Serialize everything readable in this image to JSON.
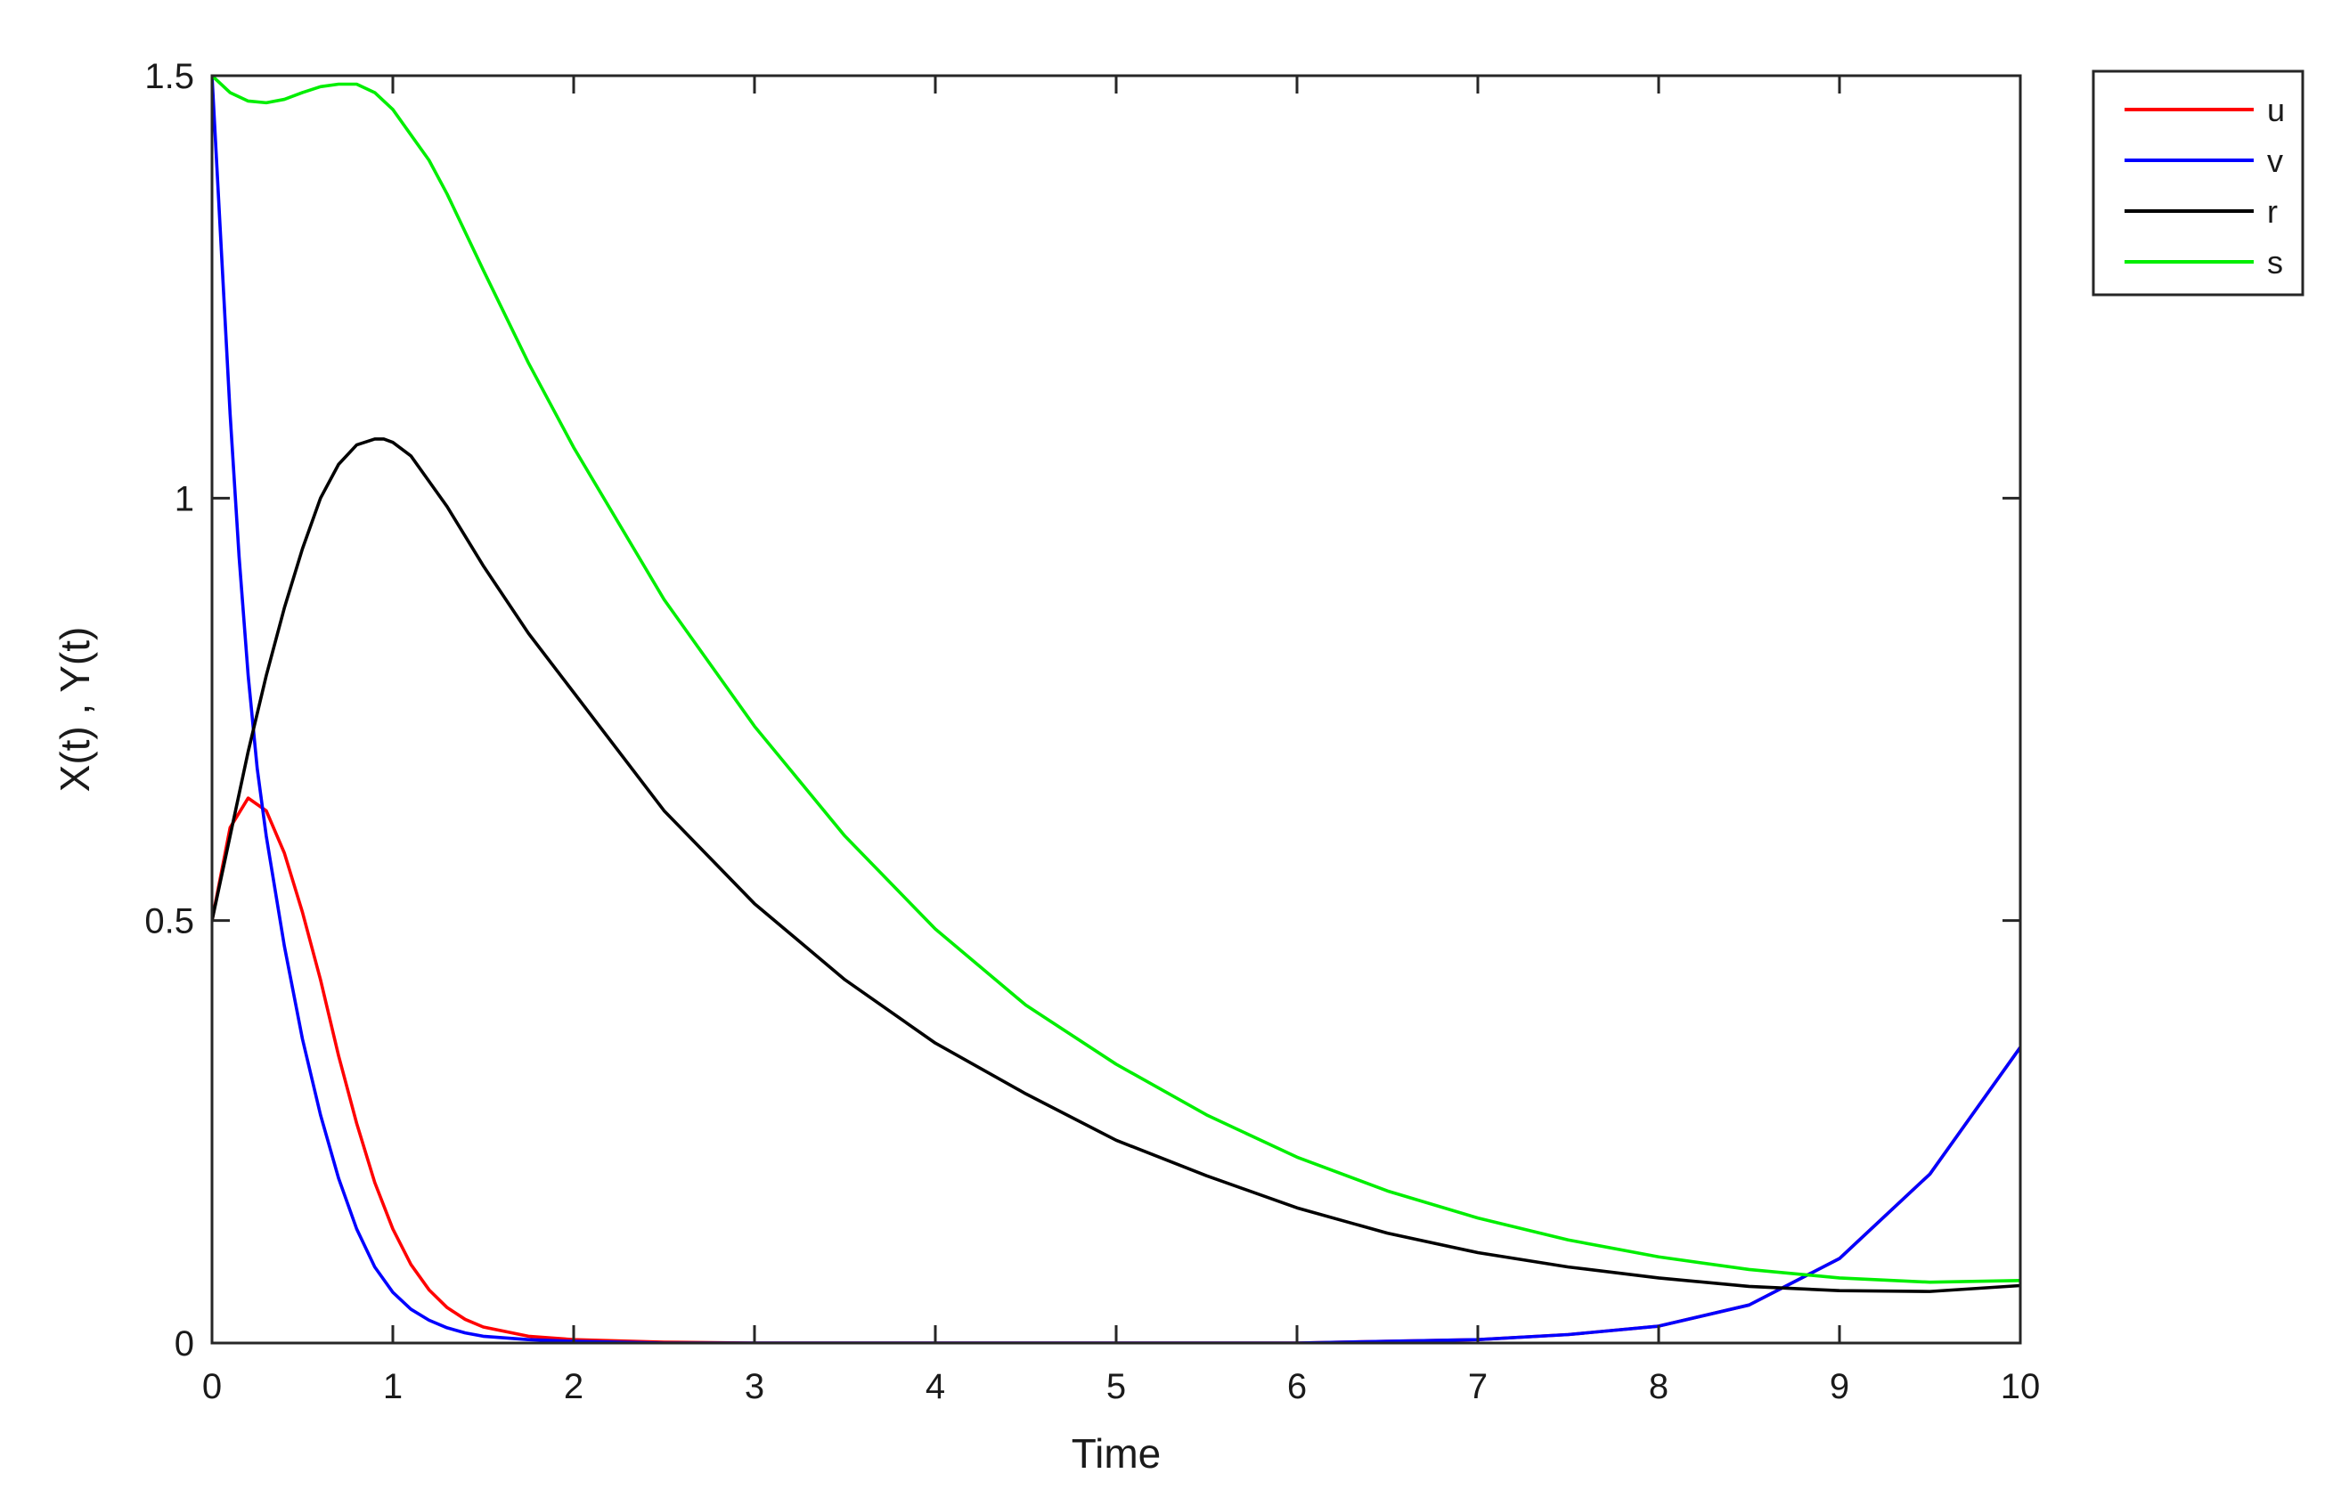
{
  "chart_data": {
    "type": "line",
    "title": "",
    "xlabel": "Time",
    "ylabel": "X(t) , Y(t)",
    "xlim": [
      0,
      10
    ],
    "ylim": [
      0,
      1.5
    ],
    "xticks": [
      0,
      1,
      2,
      3,
      4,
      5,
      6,
      7,
      8,
      9,
      10
    ],
    "xtick_labels": [
      "0",
      "1",
      "2",
      "3",
      "4",
      "5",
      "6",
      "7",
      "8",
      "9",
      "10"
    ],
    "yticks": [
      0,
      0.5,
      1,
      1.5
    ],
    "ytick_labels": [
      "0",
      "0.5",
      "1",
      "1.5"
    ],
    "grid": false,
    "legend_position": "outside-top-right",
    "series": [
      {
        "name": "u",
        "color": "#ff0000",
        "x": [
          0,
          0.1,
          0.2,
          0.3,
          0.4,
          0.5,
          0.6,
          0.7,
          0.8,
          0.9,
          1.0,
          1.1,
          1.2,
          1.3,
          1.4,
          1.5,
          1.75,
          2.0,
          2.5,
          3,
          4,
          5,
          6,
          7,
          7.5,
          8,
          8.5,
          9,
          9.5,
          10
        ],
        "y": [
          0.5,
          0.61,
          0.645,
          0.63,
          0.58,
          0.51,
          0.43,
          0.34,
          0.26,
          0.19,
          0.135,
          0.093,
          0.063,
          0.042,
          0.028,
          0.019,
          0.008,
          0.004,
          0.001,
          0.0,
          0.0,
          0.0,
          0.0,
          0.004,
          0.01,
          0.02,
          0.045,
          0.1,
          0.2,
          0.35
        ]
      },
      {
        "name": "v",
        "color": "#0000ff",
        "x": [
          0,
          0.05,
          0.1,
          0.15,
          0.2,
          0.25,
          0.3,
          0.4,
          0.5,
          0.6,
          0.7,
          0.8,
          0.9,
          1.0,
          1.1,
          1.2,
          1.3,
          1.4,
          1.5,
          1.75,
          2.0,
          2.5,
          3,
          4,
          5,
          6,
          7,
          7.5,
          8,
          8.5,
          9,
          9.5,
          10
        ],
        "y": [
          1.5,
          1.3,
          1.1,
          0.93,
          0.79,
          0.68,
          0.6,
          0.47,
          0.36,
          0.27,
          0.195,
          0.135,
          0.09,
          0.06,
          0.04,
          0.027,
          0.018,
          0.012,
          0.008,
          0.004,
          0.002,
          0.0,
          0.0,
          0.0,
          0.0,
          0.0,
          0.004,
          0.01,
          0.02,
          0.045,
          0.1,
          0.2,
          0.35
        ]
      },
      {
        "name": "r",
        "color": "#000000",
        "x": [
          0,
          0.1,
          0.2,
          0.3,
          0.4,
          0.5,
          0.6,
          0.7,
          0.8,
          0.9,
          0.95,
          1.0,
          1.1,
          1.2,
          1.3,
          1.5,
          1.75,
          2.0,
          2.5,
          3,
          3.5,
          4,
          4.5,
          5,
          5.5,
          6,
          6.5,
          7,
          7.5,
          8,
          8.5,
          9,
          9.5,
          10
        ],
        "y": [
          0.5,
          0.6,
          0.7,
          0.79,
          0.87,
          0.94,
          1.0,
          1.04,
          1.063,
          1.07,
          1.07,
          1.066,
          1.05,
          1.02,
          0.99,
          0.92,
          0.84,
          0.77,
          0.63,
          0.52,
          0.43,
          0.355,
          0.295,
          0.24,
          0.198,
          0.16,
          0.13,
          0.107,
          0.09,
          0.077,
          0.067,
          0.062,
          0.061,
          0.068
        ]
      },
      {
        "name": "s",
        "color": "#00ee00",
        "x": [
          0,
          0.1,
          0.2,
          0.3,
          0.4,
          0.5,
          0.6,
          0.7,
          0.8,
          0.9,
          1.0,
          1.1,
          1.2,
          1.3,
          1.5,
          1.75,
          2.0,
          2.5,
          3,
          3.5,
          4,
          4.5,
          5,
          5.5,
          6,
          6.5,
          7,
          7.5,
          8,
          8.5,
          9,
          9.5,
          10
        ],
        "y": [
          1.5,
          1.48,
          1.47,
          1.468,
          1.472,
          1.48,
          1.487,
          1.49,
          1.49,
          1.48,
          1.46,
          1.43,
          1.4,
          1.36,
          1.27,
          1.16,
          1.06,
          0.88,
          0.73,
          0.6,
          0.49,
          0.4,
          0.33,
          0.27,
          0.22,
          0.18,
          0.148,
          0.122,
          0.102,
          0.087,
          0.077,
          0.072,
          0.074
        ]
      }
    ]
  }
}
